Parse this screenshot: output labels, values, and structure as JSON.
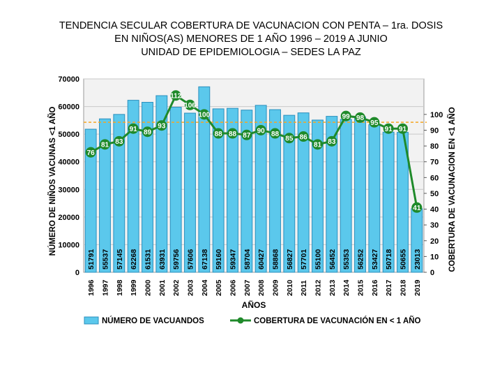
{
  "title": {
    "line1": "TENDENCIA SECULAR COBERTURA DE VACUNACION CON PENTA – 1ra. DOSIS",
    "line2": "EN NIÑOS(AS) MENORES DE 1 AÑO 1996 – 2019 A JUNIO",
    "line3": "UNIDAD DE EPIDEMIOLOGIA – SEDES LA PAZ"
  },
  "chart_data": {
    "type": "bar",
    "categories": [
      "1996",
      "1997",
      "1998",
      "1999",
      "2000",
      "2001",
      "2002",
      "2003",
      "2004",
      "2005",
      "2006",
      "2007",
      "2008",
      "2009",
      "2010",
      "2011",
      "2012",
      "2013",
      "2014",
      "2015",
      "2016",
      "2017",
      "2018",
      "2019"
    ],
    "series": [
      {
        "name": "NÚMERO DE VACUANDOS",
        "type": "bar",
        "axis": "left",
        "color": "#5bc8ec",
        "values": [
          51791,
          55537,
          57145,
          62268,
          61531,
          63931,
          59756,
          57606,
          67138,
          59160,
          59347,
          58704,
          60427,
          58868,
          56827,
          57701,
          55100,
          56452,
          55353,
          56252,
          53427,
          50718,
          50655,
          23013
        ]
      },
      {
        "name": "COBERTURA DE VACUNACIÓN EN < 1 AÑO",
        "type": "line",
        "axis": "right",
        "color": "#1f8a2a",
        "values": [
          76,
          81,
          83,
          91,
          89,
          93,
          112,
          106,
          100,
          88,
          88,
          87,
          90,
          88,
          85,
          86,
          81,
          83,
          99,
          98,
          95,
          91,
          91,
          41
        ]
      }
    ],
    "reference_line": {
      "axis": "right",
      "value": 95,
      "color": "#f5a623"
    },
    "ylim_left": [
      0,
      70000
    ],
    "yticks_left": [
      0,
      10000,
      20000,
      30000,
      40000,
      50000,
      60000,
      70000
    ],
    "ylim_right": [
      0,
      122.5
    ],
    "yticks_right": [
      0,
      10,
      20,
      30,
      40,
      50,
      60,
      70,
      80,
      90,
      100
    ],
    "xlabel": "AÑOS",
    "ylabel_left": "NÚMERO DE NIÑOS VACUNAS <1 AÑO",
    "ylabel_right": "COBERTURA DE VACUNACION  EN <1 AÑO",
    "legend_position": "bottom"
  },
  "colors": {
    "bar_fill": "#5bc8ec",
    "bar_stroke": "#2b8fbd",
    "line": "#1f8a2a",
    "marker_label_text": "#ffffff",
    "reference": "#f5a623",
    "plot_bg": "#f2f2f2",
    "grid": "#c8c8c8"
  }
}
